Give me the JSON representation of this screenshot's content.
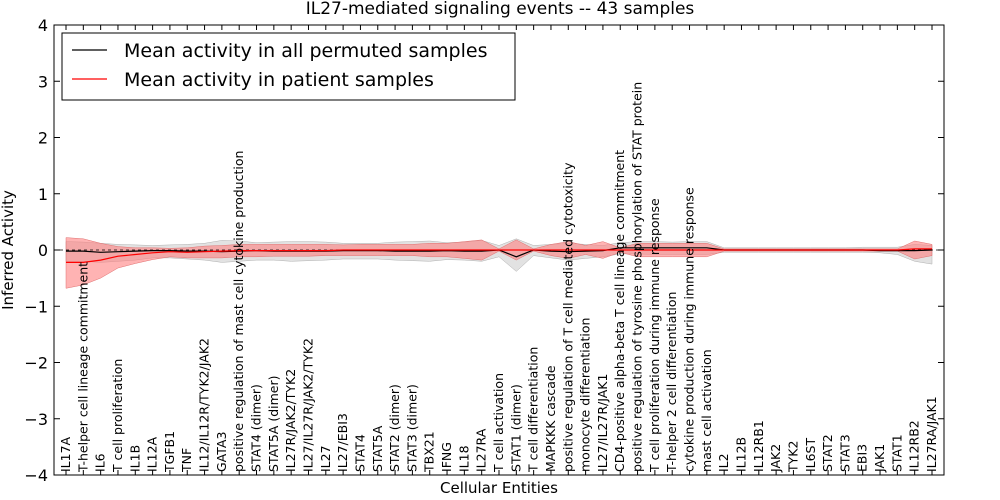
{
  "chart_data": {
    "type": "line",
    "title": "IL27-mediated signaling events -- 43 samples",
    "xlabel": "Cellular Entities",
    "ylabel": "Inferred Activity",
    "ylim": [
      -4,
      4
    ],
    "yticks": [
      -4,
      -3,
      -2,
      -1,
      0,
      1,
      2,
      3,
      4
    ],
    "ytick_labels": [
      "−4",
      "−3",
      "−2",
      "−1",
      "0",
      "1",
      "2",
      "3",
      "4"
    ],
    "legend_placement": "top-left",
    "categories": [
      "IL17A",
      "T-helper cell lineage commitment",
      "IL6",
      "T cell proliferation",
      "IL1B",
      "IL12A",
      "TGFB1",
      "TNF",
      "IL12/IL12R/TYK2/JAK2",
      "GATA3",
      "positive regulation of mast cell cytokine production",
      "STAT4 (dimer)",
      "STAT5A (dimer)",
      "IL27R/JAK2/TYK2",
      "IL27/IL27R/JAK2/TYK2",
      "IL27",
      "IL27/EBI3",
      "STAT4",
      "STAT5A",
      "STAT2 (dimer)",
      "STAT3 (dimer)",
      "TBX21",
      "IFNG",
      "IL18",
      "IL27RA",
      "T cell activation",
      "STAT1 (dimer)",
      "T cell differentiation",
      "MAPKKK cascade",
      "positive regulation of T cell mediated cytotoxicity",
      "monocyte differentiation",
      "IL27/IL27R/JAK1",
      "CD4-positive alpha-beta T cell lineage commitment",
      "positive regulation of tyrosine phosphorylation of STAT protein",
      "T cell proliferation during immune response",
      "T-helper 2 cell differentiation",
      "cytokine production during immune response",
      "mast cell activation",
      "IL2",
      "IL12B",
      "IL12RB1",
      "JAK2",
      "TYK2",
      "IL6ST",
      "STAT2",
      "STAT3",
      "EBI3",
      "JAK1",
      "STAT1",
      "IL12RB2",
      "IL27RA/JAK1"
    ],
    "series": [
      {
        "name": "Mean activity in all permuted samples",
        "color": "#000000",
        "band_color": "#d8d8d8",
        "values": [
          -0.02,
          -0.02,
          -0.04,
          -0.03,
          -0.02,
          -0.01,
          -0.01,
          -0.02,
          -0.02,
          -0.03,
          -0.02,
          -0.01,
          -0.02,
          -0.02,
          -0.02,
          -0.02,
          -0.01,
          -0.01,
          -0.01,
          -0.02,
          -0.02,
          -0.02,
          -0.01,
          -0.02,
          -0.02,
          0.0,
          -0.12,
          0.0,
          -0.02,
          -0.03,
          -0.02,
          -0.01,
          0.04,
          0.04,
          0.04,
          0.04,
          0.04,
          0.04,
          0.0,
          0.0,
          0.0,
          0.0,
          0.0,
          0.0,
          0.0,
          0.0,
          0.0,
          -0.01,
          -0.01,
          -0.01,
          0.0
        ],
        "upper": [
          0.15,
          0.14,
          0.12,
          0.1,
          0.09,
          0.08,
          0.09,
          0.1,
          0.12,
          0.17,
          0.16,
          0.13,
          0.14,
          0.15,
          0.15,
          0.14,
          0.12,
          0.12,
          0.12,
          0.14,
          0.15,
          0.16,
          0.13,
          0.14,
          0.17,
          0.08,
          0.2,
          0.08,
          0.1,
          0.12,
          0.1,
          0.08,
          0.13,
          0.15,
          0.15,
          0.14,
          0.15,
          0.15,
          0.04,
          0.04,
          0.04,
          0.04,
          0.04,
          0.04,
          0.04,
          0.04,
          0.05,
          0.05,
          0.05,
          0.1,
          0.08
        ],
        "lower": [
          -0.2,
          -0.2,
          -0.22,
          -0.2,
          -0.18,
          -0.14,
          -0.14,
          -0.16,
          -0.18,
          -0.22,
          -0.2,
          -0.18,
          -0.18,
          -0.2,
          -0.19,
          -0.18,
          -0.16,
          -0.16,
          -0.16,
          -0.18,
          -0.19,
          -0.2,
          -0.17,
          -0.18,
          -0.2,
          -0.12,
          -0.38,
          -0.1,
          -0.14,
          -0.18,
          -0.15,
          -0.12,
          -0.07,
          -0.07,
          -0.08,
          -0.08,
          -0.08,
          -0.08,
          -0.04,
          -0.04,
          -0.04,
          -0.04,
          -0.04,
          -0.04,
          -0.04,
          -0.04,
          -0.04,
          -0.05,
          -0.08,
          -0.2,
          -0.25
        ]
      },
      {
        "name": "Mean activity in patient samples",
        "color": "#ff0000",
        "band_color": "#ff8080",
        "values": [
          -0.22,
          -0.22,
          -0.18,
          -0.11,
          -0.08,
          -0.05,
          -0.03,
          -0.04,
          -0.03,
          -0.02,
          -0.01,
          -0.01,
          -0.01,
          -0.01,
          -0.01,
          -0.01,
          0.0,
          0.0,
          0.0,
          0.0,
          0.0,
          0.0,
          0.0,
          0.0,
          0.0,
          0.0,
          0.0,
          0.0,
          0.0,
          0.0,
          0.0,
          0.0,
          0.0,
          0.0,
          0.0,
          0.0,
          0.0,
          0.0,
          0.0,
          0.0,
          0.0,
          0.0,
          0.0,
          0.0,
          0.0,
          0.0,
          0.0,
          0.0,
          0.0,
          0.02,
          0.02
        ],
        "upper": [
          0.22,
          0.2,
          0.12,
          0.06,
          0.04,
          0.04,
          0.03,
          0.04,
          0.07,
          0.08,
          0.1,
          0.1,
          0.1,
          0.1,
          0.1,
          0.1,
          0.09,
          0.1,
          0.1,
          0.1,
          0.1,
          0.12,
          0.12,
          0.15,
          0.18,
          0.02,
          0.18,
          0.02,
          0.1,
          0.15,
          0.08,
          0.15,
          0.04,
          0.12,
          0.12,
          0.12,
          0.12,
          0.12,
          0.02,
          0.02,
          0.02,
          0.02,
          0.02,
          0.02,
          0.02,
          0.02,
          0.02,
          0.02,
          0.02,
          0.16,
          0.1
        ],
        "lower": [
          -0.68,
          -0.62,
          -0.5,
          -0.32,
          -0.24,
          -0.17,
          -0.12,
          -0.14,
          -0.14,
          -0.14,
          -0.12,
          -0.12,
          -0.11,
          -0.11,
          -0.11,
          -0.1,
          -0.1,
          -0.1,
          -0.1,
          -0.1,
          -0.1,
          -0.12,
          -0.12,
          -0.15,
          -0.18,
          -0.02,
          -0.18,
          -0.02,
          -0.1,
          -0.15,
          -0.08,
          -0.15,
          -0.04,
          -0.12,
          -0.12,
          -0.12,
          -0.12,
          -0.12,
          -0.02,
          -0.02,
          -0.02,
          -0.02,
          -0.02,
          -0.02,
          -0.02,
          -0.02,
          -0.02,
          -0.02,
          -0.02,
          -0.16,
          -0.1
        ]
      }
    ]
  }
}
